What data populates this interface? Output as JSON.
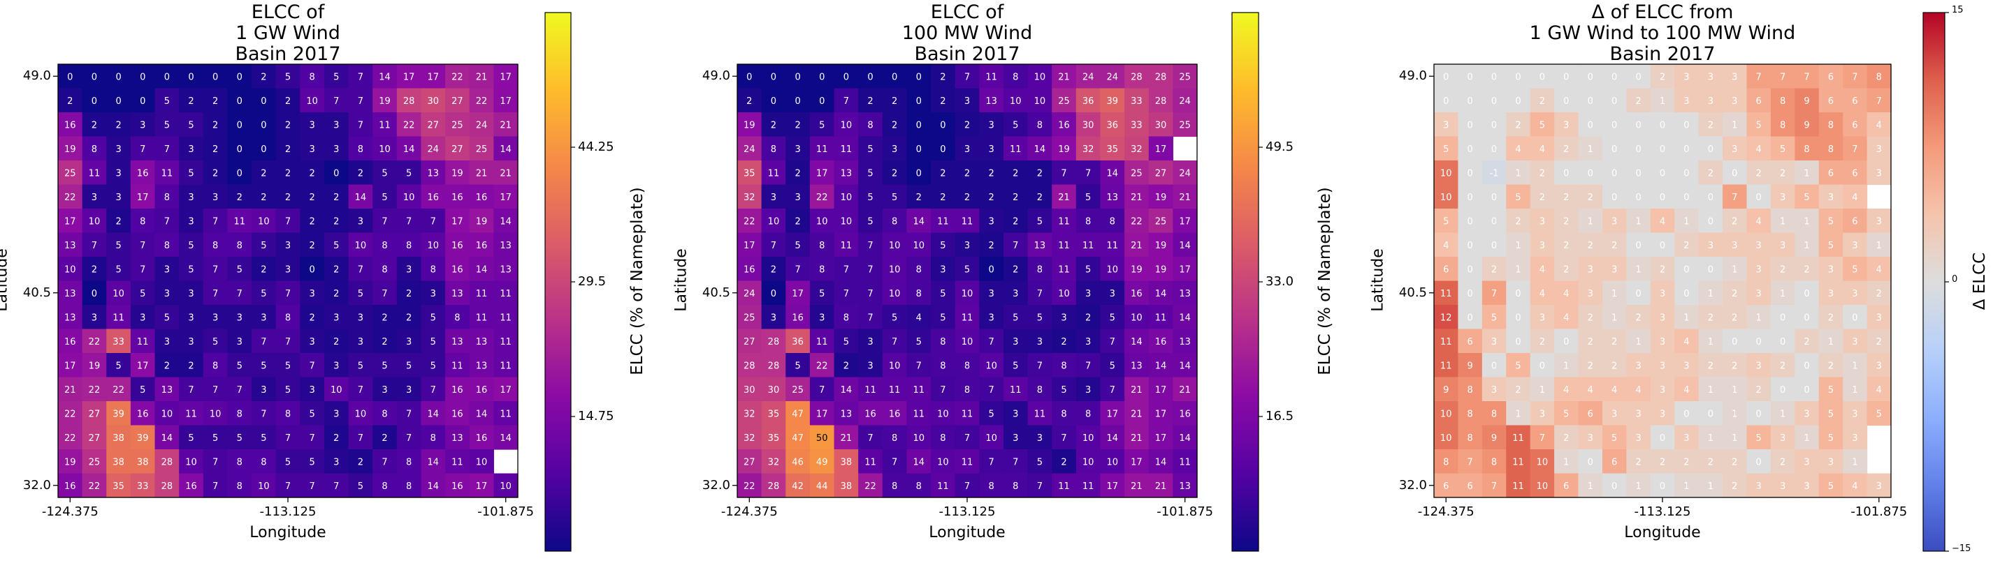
{
  "chart_data": [
    {
      "type": "heatmap",
      "title": [
        "ELCC of",
        "1 GW Wind",
        "Basin 2017"
      ],
      "xlabel": "Longitude",
      "ylabel": "Latitude",
      "x_ticks": [
        "-124.375",
        "-113.125",
        "-101.875"
      ],
      "y_ticks": [
        "49.0",
        "40.5",
        "32.0"
      ],
      "colormap": "plasma",
      "colorbar": {
        "label": "ELCC (% of Nameplate)",
        "range": [
          0,
          59
        ],
        "ticks": [
          "14.75",
          "29.5",
          "44.25"
        ]
      },
      "values": [
        [
          0,
          0,
          0,
          0,
          0,
          0,
          0,
          0,
          2,
          5,
          8,
          5,
          7,
          14,
          17,
          17,
          22,
          21,
          17
        ],
        [
          2,
          0,
          0,
          0,
          5,
          2,
          2,
          0,
          0,
          2,
          10,
          7,
          7,
          19,
          28,
          30,
          27,
          22,
          17
        ],
        [
          16,
          2,
          2,
          3,
          5,
          5,
          2,
          0,
          0,
          2,
          3,
          3,
          7,
          11,
          22,
          27,
          25,
          24,
          21
        ],
        [
          19,
          8,
          3,
          7,
          7,
          3,
          2,
          0,
          0,
          2,
          3,
          3,
          8,
          10,
          14,
          24,
          27,
          25,
          14
        ],
        [
          25,
          11,
          3,
          16,
          11,
          5,
          2,
          0,
          2,
          2,
          2,
          0,
          2,
          5,
          5,
          13,
          19,
          21,
          21
        ],
        [
          22,
          3,
          3,
          17,
          8,
          3,
          3,
          2,
          2,
          2,
          2,
          2,
          14,
          5,
          10,
          16,
          16,
          16,
          17
        ],
        [
          17,
          10,
          2,
          8,
          7,
          3,
          7,
          11,
          10,
          7,
          2,
          2,
          3,
          7,
          7,
          7,
          17,
          19,
          14
        ],
        [
          13,
          7,
          5,
          7,
          8,
          5,
          8,
          8,
          5,
          3,
          2,
          5,
          10,
          8,
          8,
          10,
          16,
          16,
          13
        ],
        [
          10,
          2,
          5,
          7,
          3,
          5,
          7,
          5,
          2,
          3,
          0,
          2,
          7,
          8,
          3,
          8,
          16,
          14,
          13
        ],
        [
          13,
          0,
          10,
          5,
          3,
          3,
          7,
          7,
          5,
          7,
          3,
          2,
          5,
          7,
          2,
          3,
          13,
          11,
          11
        ],
        [
          13,
          3,
          11,
          3,
          5,
          3,
          3,
          3,
          3,
          8,
          2,
          3,
          3,
          2,
          2,
          5,
          8,
          11,
          11
        ],
        [
          16,
          22,
          33,
          11,
          3,
          3,
          5,
          3,
          7,
          7,
          3,
          2,
          3,
          2,
          3,
          5,
          13,
          13,
          11
        ],
        [
          17,
          19,
          5,
          17,
          2,
          2,
          8,
          5,
          5,
          5,
          7,
          3,
          5,
          5,
          5,
          5,
          11,
          13,
          11
        ],
        [
          21,
          22,
          22,
          5,
          13,
          7,
          7,
          7,
          3,
          5,
          3,
          10,
          7,
          3,
          3,
          7,
          16,
          16,
          17
        ],
        [
          22,
          27,
          39,
          16,
          10,
          11,
          10,
          8,
          7,
          8,
          5,
          3,
          10,
          8,
          7,
          14,
          16,
          14,
          11
        ],
        [
          22,
          27,
          38,
          39,
          14,
          5,
          5,
          5,
          5,
          7,
          7,
          2,
          7,
          2,
          7,
          8,
          13,
          16,
          14
        ],
        [
          19,
          25,
          38,
          38,
          28,
          10,
          7,
          8,
          8,
          5,
          5,
          3,
          2,
          7,
          8,
          14,
          11,
          10
        ],
        [
          16,
          22,
          35,
          33,
          28,
          16,
          7,
          8,
          10,
          7,
          7,
          7,
          5,
          8,
          8,
          14,
          16,
          17,
          10
        ]
      ]
    },
    {
      "type": "heatmap",
      "title": [
        "ELCC of",
        "100 MW Wind",
        "Basin 2017"
      ],
      "xlabel": "Longitude",
      "ylabel": "Latitude",
      "x_ticks": [
        "-124.375",
        "-113.125",
        "-101.875"
      ],
      "y_ticks": [
        "49.0",
        "40.5",
        "32.0"
      ],
      "colormap": "plasma",
      "colorbar": {
        "label": "ELCC (% of Nameplate)",
        "range": [
          0,
          66
        ],
        "ticks": [
          "16.5",
          "33.0",
          "49.5"
        ]
      },
      "values": [
        [
          0,
          0,
          0,
          0,
          0,
          0,
          0,
          0,
          2,
          7,
          11,
          8,
          10,
          21,
          24,
          24,
          28,
          28,
          25
        ],
        [
          2,
          0,
          0,
          0,
          7,
          2,
          2,
          0,
          2,
          3,
          13,
          10,
          10,
          25,
          36,
          39,
          33,
          28,
          24
        ],
        [
          19,
          2,
          2,
          5,
          10,
          8,
          2,
          0,
          0,
          2,
          3,
          5,
          8,
          16,
          30,
          36,
          33,
          30,
          25
        ],
        [
          24,
          8,
          3,
          11,
          11,
          5,
          3,
          0,
          0,
          3,
          3,
          11,
          14,
          19,
          32,
          35,
          32,
          17
        ],
        [
          35,
          11,
          2,
          17,
          13,
          5,
          2,
          0,
          2,
          2,
          2,
          2,
          2,
          7,
          7,
          14,
          25,
          27,
          24
        ],
        [
          32,
          3,
          3,
          22,
          10,
          5,
          5,
          2,
          2,
          2,
          2,
          2,
          2,
          21,
          5,
          13,
          21,
          19,
          21
        ],
        [
          22,
          10,
          2,
          10,
          10,
          5,
          8,
          14,
          11,
          11,
          3,
          2,
          5,
          11,
          8,
          8,
          22,
          25,
          17
        ],
        [
          17,
          7,
          5,
          8,
          11,
          7,
          10,
          10,
          5,
          3,
          2,
          7,
          13,
          11,
          11,
          11,
          21,
          19,
          14
        ],
        [
          16,
          2,
          7,
          8,
          7,
          7,
          10,
          8,
          3,
          5,
          0,
          2,
          8,
          11,
          5,
          10,
          19,
          19,
          17
        ],
        [
          24,
          0,
          17,
          5,
          7,
          7,
          10,
          8,
          5,
          10,
          3,
          3,
          7,
          10,
          3,
          3,
          16,
          14,
          13
        ],
        [
          25,
          3,
          16,
          3,
          8,
          7,
          5,
          4,
          5,
          11,
          3,
          5,
          5,
          3,
          2,
          5,
          10,
          11,
          14
        ],
        [
          27,
          28,
          36,
          11,
          5,
          3,
          7,
          5,
          8,
          10,
          7,
          3,
          3,
          2,
          3,
          7,
          14,
          16,
          13
        ],
        [
          28,
          28,
          5,
          22,
          2,
          3,
          10,
          7,
          8,
          8,
          10,
          5,
          7,
          8,
          7,
          5,
          13,
          14,
          14
        ],
        [
          30,
          30,
          25,
          7,
          14,
          11,
          11,
          11,
          7,
          8,
          7,
          11,
          8,
          5,
          3,
          7,
          21,
          17,
          21
        ],
        [
          32,
          35,
          47,
          17,
          13,
          16,
          16,
          11,
          10,
          11,
          5,
          3,
          11,
          8,
          8,
          17,
          21,
          17,
          16
        ],
        [
          32,
          35,
          47,
          50,
          21,
          7,
          8,
          10,
          8,
          7,
          10,
          3,
          3,
          7,
          10,
          14,
          21,
          17,
          14
        ],
        [
          27,
          32,
          46,
          49,
          38,
          11,
          7,
          14,
          10,
          11,
          7,
          7,
          5,
          2,
          10,
          10,
          17,
          14,
          11
        ],
        [
          22,
          28,
          42,
          44,
          38,
          22,
          8,
          8,
          11,
          7,
          8,
          8,
          7,
          11,
          11,
          17,
          21,
          21,
          13
        ]
      ]
    },
    {
      "type": "heatmap",
      "title": [
        "Δ of ELCC from",
        "1 GW Wind to 100 MW Wind",
        "Basin 2017"
      ],
      "xlabel": "Longitude",
      "ylabel": "Latitude",
      "x_ticks": [
        "-124.375",
        "-113.125",
        "-101.875"
      ],
      "y_ticks": [
        "49.0",
        "40.5",
        "32.0"
      ],
      "colormap": "coolwarm",
      "colorbar": {
        "label": "Δ ELCC",
        "range": [
          -15,
          15
        ],
        "ticks": [
          "15",
          "0",
          "−15"
        ]
      },
      "values": [
        [
          0,
          0,
          0,
          0,
          0,
          0,
          0,
          0,
          0,
          2,
          3,
          3,
          3,
          7,
          7,
          7,
          6,
          7,
          8
        ],
        [
          0,
          0,
          0,
          0,
          2,
          0,
          0,
          0,
          2,
          1,
          3,
          3,
          3,
          6,
          8,
          9,
          6,
          6,
          7
        ],
        [
          3,
          0,
          0,
          2,
          5,
          3,
          0,
          0,
          0,
          0,
          0,
          2,
          1,
          5,
          8,
          9,
          8,
          6,
          4
        ],
        [
          5,
          0,
          0,
          4,
          4,
          2,
          1,
          0,
          0,
          0,
          0,
          0,
          3,
          4,
          5,
          8,
          8,
          7,
          3
        ],
        [
          10,
          0,
          -1,
          1,
          2,
          0,
          0,
          0,
          0,
          0,
          0,
          2,
          0,
          2,
          2,
          1,
          6,
          6,
          3
        ],
        [
          10,
          0,
          0,
          5,
          2,
          2,
          2,
          0,
          0,
          0,
          0,
          0,
          7,
          0,
          3,
          5,
          3,
          4
        ],
        [
          5,
          0,
          0,
          2,
          3,
          2,
          1,
          3,
          1,
          4,
          1,
          0,
          2,
          4,
          1,
          1,
          5,
          6,
          3
        ],
        [
          4,
          0,
          0,
          1,
          3,
          2,
          2,
          2,
          0,
          0,
          2,
          3,
          3,
          3,
          3,
          1,
          5,
          3,
          1
        ],
        [
          6,
          0,
          2,
          1,
          4,
          2,
          3,
          3,
          1,
          2,
          0,
          0,
          1,
          3,
          2,
          2,
          3,
          5,
          4
        ],
        [
          11,
          0,
          7,
          0,
          4,
          4,
          3,
          1,
          0,
          3,
          0,
          1,
          2,
          3,
          1,
          0,
          3,
          3,
          2
        ],
        [
          12,
          0,
          5,
          0,
          3,
          4,
          2,
          1,
          2,
          3,
          1,
          2,
          2,
          1,
          0,
          0,
          2,
          0,
          3
        ],
        [
          11,
          6,
          3,
          0,
          2,
          0,
          2,
          2,
          1,
          3,
          4,
          1,
          0,
          0,
          0,
          2,
          1,
          3,
          2
        ],
        [
          11,
          9,
          0,
          5,
          0,
          1,
          2,
          2,
          3,
          3,
          3,
          2,
          2,
          3,
          2,
          0,
          2,
          1,
          3
        ],
        [
          9,
          8,
          3,
          2,
          1,
          4,
          4,
          4,
          4,
          3,
          4,
          1,
          1,
          2,
          0,
          0,
          5,
          1,
          4
        ],
        [
          10,
          8,
          8,
          1,
          3,
          5,
          6,
          3,
          3,
          3,
          0,
          0,
          1,
          0,
          1,
          3,
          5,
          3,
          5
        ],
        [
          10,
          8,
          9,
          11,
          7,
          2,
          3,
          5,
          3,
          0,
          3,
          1,
          1,
          5,
          3,
          1,
          5,
          3
        ],
        [
          8,
          7,
          8,
          11,
          10,
          1,
          0,
          6,
          2,
          2,
          2,
          2,
          2,
          0,
          2,
          3,
          3,
          1
        ],
        [
          6,
          6,
          7,
          11,
          10,
          6,
          1,
          0,
          1,
          0,
          1,
          1,
          2,
          3,
          3,
          3,
          5,
          4,
          3
        ]
      ]
    }
  ]
}
